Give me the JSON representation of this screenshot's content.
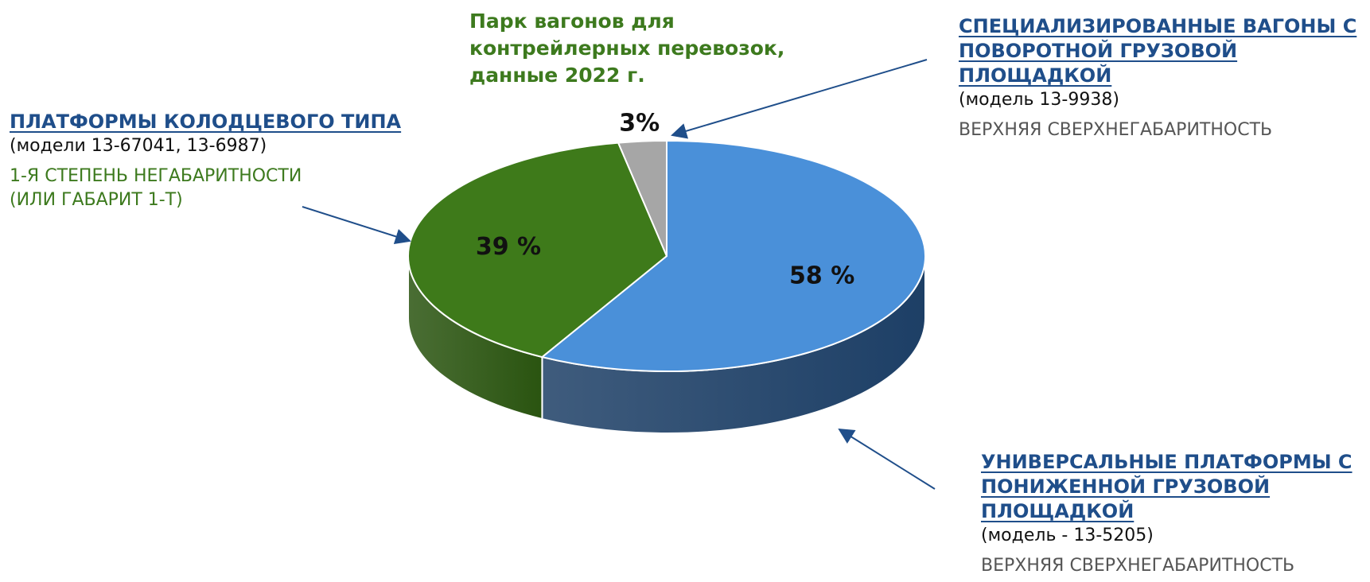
{
  "chart_data": {
    "type": "pie",
    "title": "Парк вагонов для контрейлерных перевозок, данные 2022 г.",
    "slices": [
      {
        "key": "universal",
        "label": "УНИВЕРСАЛЬНЫЕ ПЛАТФОРМЫ С ПОНИЖЕННОЙ ГРУЗОВОЙ ПЛОЩАДКОЙ",
        "model": "(модель - 13-5205)",
        "note": "ВЕРХНЯЯ СВЕРХНЕГАБАРИТНОСТЬ",
        "value": 58,
        "value_label": "58 %",
        "color": "#4a90d9",
        "side_color": "#1d3f66"
      },
      {
        "key": "well",
        "label": "ПЛАТФОРМЫ КОЛОДЦЕВОГО ТИПА",
        "model": "(модели 13-67041, 13-6987)",
        "note": "1-Я СТЕПЕНЬ НЕГАБАРИТНОСТИ (ИЛИ ГАБАРИТ 1-Т)",
        "value": 39,
        "value_label": "39 %",
        "color": "#3e7a1a",
        "side_color": "#2a5410"
      },
      {
        "key": "special",
        "label": "СПЕЦИАЛИЗИРОВАННЫЕ ВАГОНЫ С ПОВОРОТНОЙ ГРУЗОВОЙ ПЛОЩАДКОЙ",
        "model": "(модель 13-9938)",
        "note": "ВЕРХНЯЯ СВЕРХНЕГАБАРИТНОСТЬ",
        "value": 3,
        "value_label": "3%",
        "color": "#a6a6a6",
        "side_color": "#7a7a7a"
      }
    ]
  },
  "colors": {
    "title_green": "#3d7a1e",
    "label_blue": "#1f4e8a",
    "arrow": "#1f4e8a"
  }
}
